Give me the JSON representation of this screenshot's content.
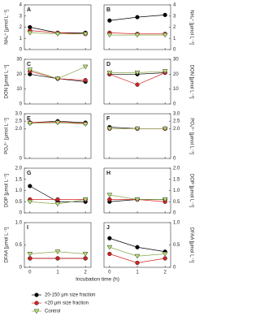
{
  "chart_data": [
    {
      "type": "line",
      "panel": "A",
      "ylabel": "NH₄⁺ [µmol L⁻¹]",
      "axis_side": "left",
      "x": [
        0,
        1,
        2
      ],
      "xlim": [
        -0.2,
        2.2
      ],
      "ylim": [
        0,
        4
      ],
      "yticks": [
        0,
        1,
        2,
        3,
        4
      ],
      "series": [
        {
          "name": "20-150 µm size fraction",
          "color": "#000000",
          "marker": "circle",
          "values": [
            2.0,
            1.5,
            1.5
          ]
        },
        {
          "name": "<20 µm size fraction",
          "color": "#d62020",
          "marker": "circle",
          "values": [
            1.7,
            1.5,
            1.4
          ]
        },
        {
          "name": "Control",
          "color": "#b8e070",
          "marker": "triangle-down",
          "values": [
            1.5,
            1.4,
            1.4
          ]
        }
      ]
    },
    {
      "type": "line",
      "panel": "B",
      "ylabel": "NH₄⁺ [µmol L⁻¹]",
      "axis_side": "right",
      "x": [
        0,
        1,
        2
      ],
      "xlim": [
        -0.2,
        2.2
      ],
      "ylim": [
        0,
        4
      ],
      "yticks": [
        0,
        1,
        2,
        3,
        4
      ],
      "series": [
        {
          "color": "#000000",
          "marker": "circle",
          "values": [
            2.6,
            2.9,
            3.1
          ]
        },
        {
          "color": "#d62020",
          "marker": "circle",
          "values": [
            1.5,
            1.4,
            1.4
          ]
        },
        {
          "color": "#b8e070",
          "marker": "triangle-down",
          "values": [
            1.3,
            1.3,
            1.3
          ]
        }
      ]
    },
    {
      "type": "line",
      "panel": "C",
      "ylabel": "DON [µmol L⁻¹]",
      "axis_side": "left",
      "x": [
        0,
        1,
        2
      ],
      "xlim": [
        -0.2,
        2.2
      ],
      "ylim": [
        0,
        30
      ],
      "yticks": [
        0,
        10,
        20,
        30
      ],
      "series": [
        {
          "color": "#000000",
          "marker": "circle",
          "values": [
            20,
            17,
            15
          ]
        },
        {
          "color": "#d62020",
          "marker": "circle",
          "values": [
            22,
            17,
            16
          ]
        },
        {
          "color": "#b8e070",
          "marker": "triangle-down",
          "values": [
            23,
            17,
            25
          ]
        }
      ]
    },
    {
      "type": "line",
      "panel": "D",
      "ylabel": "DON [µmol L⁻¹]",
      "axis_side": "right",
      "x": [
        0,
        1,
        2
      ],
      "xlim": [
        -0.2,
        2.2
      ],
      "ylim": [
        0,
        30
      ],
      "yticks": [
        0,
        10,
        20,
        30
      ],
      "series": [
        {
          "color": "#000000",
          "marker": "circle",
          "values": [
            20,
            20,
            21
          ]
        },
        {
          "color": "#d62020",
          "marker": "circle",
          "values": [
            20,
            13,
            21
          ]
        },
        {
          "color": "#b8e070",
          "marker": "triangle-down",
          "values": [
            21,
            21,
            22
          ]
        }
      ]
    },
    {
      "type": "line",
      "panel": "E",
      "ylabel": "PO₄³⁻ [µmol L⁻¹]",
      "axis_side": "left",
      "x": [
        0,
        1,
        2
      ],
      "xlim": [
        -0.2,
        2.2
      ],
      "ylim": [
        0,
        3
      ],
      "yticks": [
        0,
        {
          "value": 2,
          "label": "2.0"
        },
        2.5,
        {
          "value": 3,
          "label": "3.0"
        }
      ],
      "series": [
        {
          "color": "#000000",
          "marker": "circle",
          "values": [
            2.4,
            2.5,
            2.4
          ]
        },
        {
          "color": "#d62020",
          "marker": "circle",
          "values": [
            2.4,
            2.45,
            2.35
          ]
        },
        {
          "color": "#b8e070",
          "marker": "triangle-down",
          "values": [
            2.35,
            2.4,
            2.3
          ]
        }
      ]
    },
    {
      "type": "line",
      "panel": "F",
      "ylabel": "PO₄³⁻ [µmol L⁻¹]",
      "axis_side": "right",
      "x": [
        0,
        1,
        2
      ],
      "xlim": [
        -0.2,
        2.2
      ],
      "ylim": [
        0,
        3
      ],
      "yticks": [
        0,
        {
          "value": 2,
          "label": "2.0"
        },
        2.5,
        {
          "value": 3,
          "label": "3.0"
        }
      ],
      "series": [
        {
          "color": "#000000",
          "marker": "circle",
          "values": [
            2.1,
            2.0,
            2.0
          ]
        },
        {
          "color": "#d62020",
          "marker": "circle",
          "values": [
            2.0,
            2.0,
            2.0
          ]
        },
        {
          "color": "#b8e070",
          "marker": "triangle-down",
          "values": [
            2.0,
            2.0,
            2.0
          ]
        }
      ]
    },
    {
      "type": "line",
      "panel": "G",
      "ylabel": "DOP [µmol L⁻¹]",
      "axis_side": "left",
      "x": [
        0,
        1,
        2
      ],
      "xlim": [
        -0.2,
        2.2
      ],
      "ylim": [
        0,
        2
      ],
      "yticks": [
        0,
        0.5,
        {
          "value": 1,
          "label": "1.0"
        },
        1.5,
        {
          "value": 2,
          "label": "2.0"
        }
      ],
      "series": [
        {
          "color": "#000000",
          "marker": "circle",
          "values": [
            1.2,
            0.5,
            0.5
          ]
        },
        {
          "color": "#d62020",
          "marker": "circle",
          "values": [
            0.6,
            0.6,
            0.6
          ]
        },
        {
          "color": "#b8e070",
          "marker": "triangle-down",
          "values": [
            0.5,
            0.4,
            0.6
          ]
        }
      ]
    },
    {
      "type": "line",
      "panel": "H",
      "ylabel": "DOP [µmol L⁻¹]",
      "axis_side": "right",
      "x": [
        0,
        1,
        2
      ],
      "xlim": [
        -0.2,
        2.2
      ],
      "ylim": [
        0,
        2
      ],
      "yticks": [
        0,
        0.5,
        {
          "value": 1,
          "label": "1.0"
        },
        1.5,
        {
          "value": 2,
          "label": "2.0"
        }
      ],
      "series": [
        {
          "color": "#000000",
          "marker": "circle",
          "values": [
            0.5,
            0.6,
            0.6
          ]
        },
        {
          "color": "#d62020",
          "marker": "circle",
          "values": [
            0.6,
            0.6,
            0.5
          ]
        },
        {
          "color": "#b8e070",
          "marker": "triangle-down",
          "values": [
            0.8,
            0.6,
            0.6
          ]
        }
      ]
    },
    {
      "type": "line",
      "panel": "I",
      "ylabel": "DFAA [µmol L⁻¹]",
      "axis_side": "left",
      "x": [
        0,
        1,
        2
      ],
      "xlim": [
        -0.2,
        2.2
      ],
      "ylim": [
        0,
        1
      ],
      "yticks": [
        0,
        0.5,
        {
          "value": 1,
          "label": "1.0"
        }
      ],
      "xticks": [
        0,
        1,
        2
      ],
      "xlabel": "Incubation time (h)",
      "series": [
        {
          "color": "#000000",
          "marker": "circle",
          "values": [
            0.2,
            0.2,
            0.2
          ]
        },
        {
          "color": "#d62020",
          "marker": "circle",
          "values": [
            0.2,
            0.2,
            0.2
          ]
        },
        {
          "color": "#b8e070",
          "marker": "triangle-down",
          "values": [
            0.3,
            0.35,
            0.3
          ]
        }
      ]
    },
    {
      "type": "line",
      "panel": "J",
      "ylabel": "DFAA [µmol L⁻¹]",
      "axis_side": "right",
      "x": [
        0,
        1,
        2
      ],
      "xlim": [
        -0.2,
        2.2
      ],
      "ylim": [
        0,
        1
      ],
      "yticks": [
        0,
        0.5,
        {
          "value": 1,
          "label": "1.0"
        }
      ],
      "xticks": [
        0,
        1,
        2
      ],
      "series": [
        {
          "color": "#000000",
          "marker": "circle",
          "values": [
            0.65,
            0.45,
            0.35
          ]
        },
        {
          "color": "#d62020",
          "marker": "circle",
          "values": [
            0.3,
            0.1,
            0.2
          ]
        },
        {
          "color": "#b8e070",
          "marker": "triangle-down",
          "values": [
            0.45,
            0.25,
            0.3
          ]
        }
      ]
    }
  ]
}
